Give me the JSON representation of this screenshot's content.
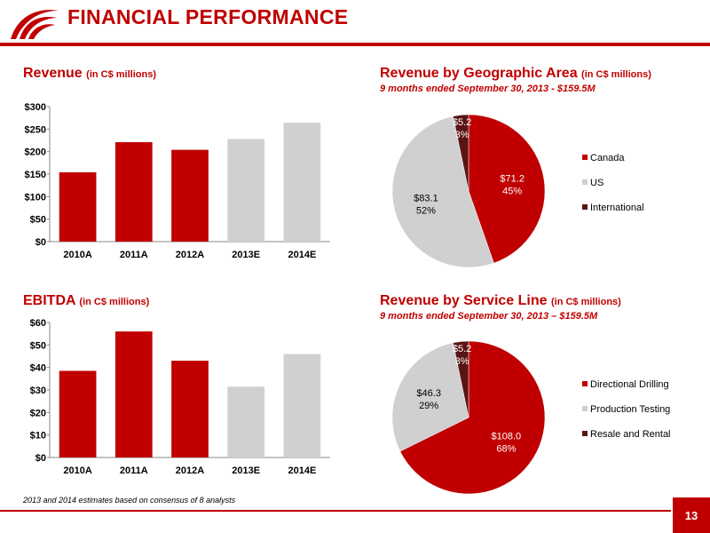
{
  "header": {
    "title": "FINANCIAL PERFORMANCE"
  },
  "colors": {
    "accent": "#c00000",
    "actual": "#c00000",
    "estimate": "#d0d0d0",
    "dark": "#5b1414",
    "text_on_red": "#ffffff"
  },
  "revenue": {
    "title": "Revenue",
    "unit": "(in C$ millions)"
  },
  "ebitda": {
    "title": "EBITDA",
    "unit": "(in C$ millions)"
  },
  "geo": {
    "title": "Revenue by Geographic Area",
    "unit": "(in C$ millions)",
    "subtitle": "9 months ended September 30, 2013 - $159.5M"
  },
  "service": {
    "title": "Revenue by Service Line",
    "unit": "(in C$ millions)",
    "subtitle": "9 months ended September 30, 2013 – $159.5M"
  },
  "footer": {
    "footnote": "2013 and 2014 estimates based on consensus of 8 analysts",
    "page_number": "13"
  },
  "chart_data": [
    {
      "id": "revenue",
      "type": "bar",
      "categories": [
        "2010A",
        "2011A",
        "2012A",
        "2013E",
        "2014E"
      ],
      "values": [
        154,
        221,
        204,
        228,
        264
      ],
      "estimate": [
        false,
        false,
        false,
        true,
        true
      ],
      "ylim": [
        0,
        300
      ],
      "yticks": [
        "$0",
        "$50",
        "$100",
        "$150",
        "$200",
        "$250",
        "$300"
      ],
      "xlabel": "",
      "ylabel": ""
    },
    {
      "id": "ebitda",
      "type": "bar",
      "categories": [
        "2010A",
        "2011A",
        "2012A",
        "2013E",
        "2014E"
      ],
      "values": [
        38.5,
        56,
        43,
        31.5,
        46
      ],
      "estimate": [
        false,
        false,
        false,
        true,
        true
      ],
      "ylim": [
        0,
        60
      ],
      "yticks": [
        "$0",
        "$10",
        "$20",
        "$30",
        "$40",
        "$50",
        "$60"
      ],
      "xlabel": "",
      "ylabel": ""
    },
    {
      "id": "geo",
      "type": "pie",
      "legend_position": "right",
      "slices": [
        {
          "name": "Canada",
          "value": 71.2,
          "label": "$71.2",
          "pct": "45%",
          "color": "#c00000"
        },
        {
          "name": "US",
          "value": 83.1,
          "label": "$83.1",
          "pct": "52%",
          "color": "#d0d0d0"
        },
        {
          "name": "International",
          "value": 5.2,
          "label": "$5.2",
          "pct": "3%",
          "color": "#5b1414"
        }
      ]
    },
    {
      "id": "service",
      "type": "pie",
      "legend_position": "right",
      "slices": [
        {
          "name": "Directional Drilling",
          "value": 108.0,
          "label": "$108.0",
          "pct": "68%",
          "color": "#c00000"
        },
        {
          "name": "Production Testing",
          "value": 46.3,
          "label": "$46.3",
          "pct": "29%",
          "color": "#d0d0d0"
        },
        {
          "name": "Resale and Rental",
          "value": 5.2,
          "label": "$5.2",
          "pct": "3%",
          "color": "#5b1414"
        }
      ]
    }
  ]
}
